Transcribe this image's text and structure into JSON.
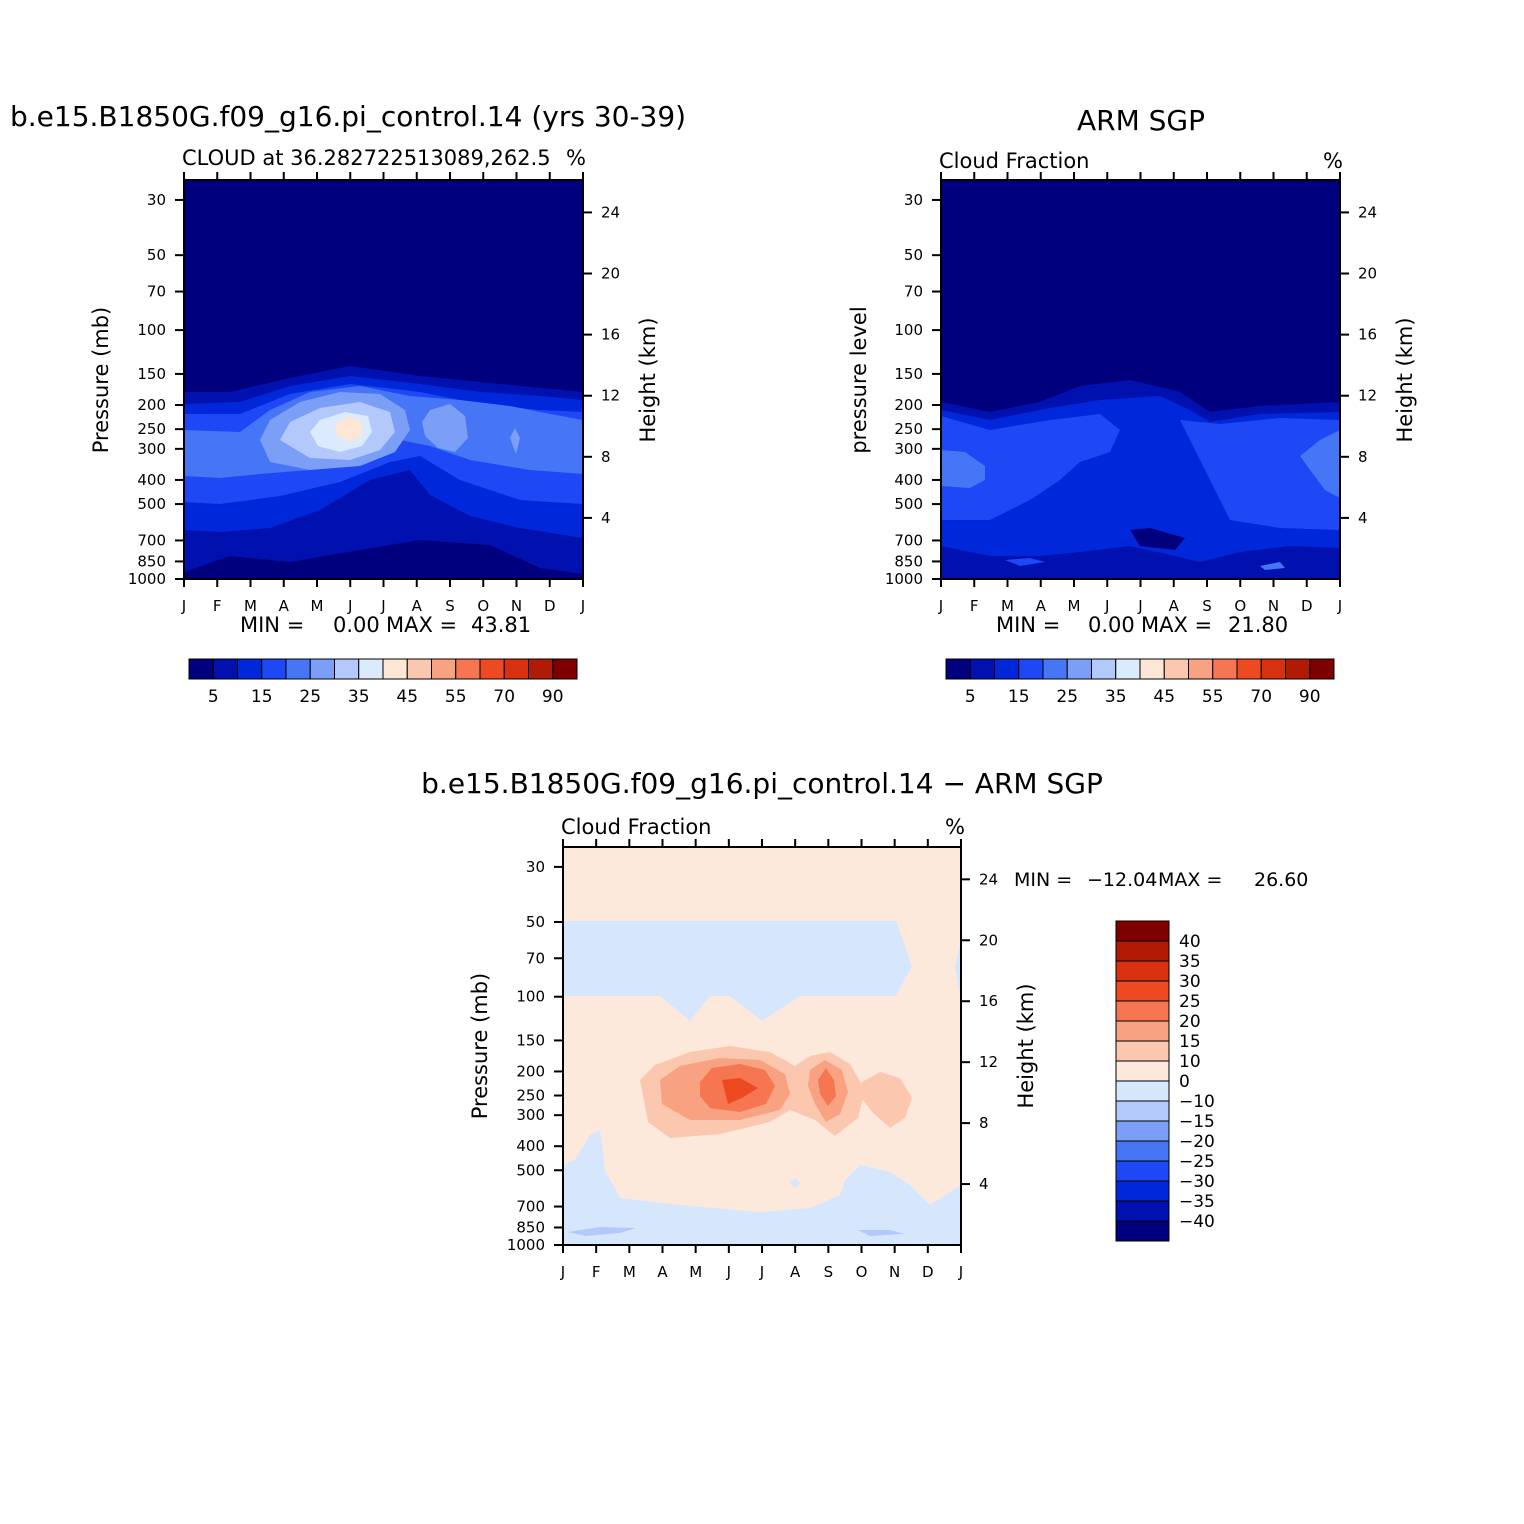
{
  "chart_data": [
    {
      "type": "heatmap",
      "id": "model",
      "title": "b.e15.B1850G.f09_g16.pi_control.14 (yrs 30-39)",
      "subtitle_left": "CLOUD at 36.282722513089,262.5",
      "subtitle_right": "%",
      "xlabel": "",
      "ylabel": "Pressure (mb)",
      "ylabel_right": "Height (km)",
      "x_ticks": [
        "J",
        "F",
        "M",
        "A",
        "M",
        "J",
        "J",
        "A",
        "S",
        "O",
        "N",
        "D",
        "J"
      ],
      "y_ticks": [
        "30",
        "50",
        "70",
        "100",
        "150",
        "200",
        "250",
        "300",
        "400",
        "500",
        "700",
        "850",
        "1000"
      ],
      "y_ticks_right": [
        "24",
        "20",
        "16",
        "12",
        "8",
        "4"
      ],
      "stats": {
        "min_label": "MIN =",
        "min": "0.00",
        "max_label": "MAX =",
        "max": "43.81"
      },
      "max_value": 43.81,
      "legend": [
        "5",
        "15",
        "25",
        "35",
        "45",
        "55",
        "70",
        "90"
      ]
    },
    {
      "type": "heatmap",
      "id": "obs",
      "title": "ARM SGP",
      "subtitle_left": "Cloud Fraction",
      "subtitle_right": "%",
      "ylabel": "pressure level",
      "ylabel_right": "Height (km)",
      "x_ticks": [
        "J",
        "F",
        "M",
        "A",
        "M",
        "J",
        "J",
        "A",
        "S",
        "O",
        "N",
        "D",
        "J"
      ],
      "y_ticks": [
        "30",
        "50",
        "70",
        "100",
        "150",
        "200",
        "250",
        "300",
        "400",
        "500",
        "700",
        "850",
        "1000"
      ],
      "y_ticks_right": [
        "24",
        "20",
        "16",
        "12",
        "8",
        "4"
      ],
      "stats": {
        "min_label": "MIN =",
        "min": "0.00",
        "max_label": "MAX =",
        "max": "21.80"
      },
      "max_value": 21.8,
      "legend": [
        "5",
        "15",
        "25",
        "35",
        "45",
        "55",
        "70",
        "90"
      ]
    },
    {
      "type": "heatmap",
      "id": "diff",
      "title": "b.e15.B1850G.f09_g16.pi_control.14 - ARM SGP",
      "subtitle_left": "Cloud Fraction",
      "subtitle_right": "%",
      "ylabel": "Pressure (mb)",
      "ylabel_right": "Height (km)",
      "x_ticks": [
        "J",
        "F",
        "M",
        "A",
        "M",
        "J",
        "J",
        "A",
        "S",
        "O",
        "N",
        "D",
        "J"
      ],
      "y_ticks": [
        "30",
        "50",
        "70",
        "100",
        "150",
        "200",
        "250",
        "300",
        "400",
        "500",
        "700",
        "850",
        "1000"
      ],
      "y_ticks_right": [
        "24",
        "20",
        "16",
        "12",
        "8",
        "4"
      ],
      "stats": {
        "min_label": "MIN =",
        "min": "-12.04",
        "max_label": "MAX =",
        "max": "26.60"
      },
      "min_value": -12.04,
      "max_value": 26.6,
      "legend": [
        "40",
        "35",
        "30",
        "25",
        "20",
        "15",
        "10",
        "0",
        "-10",
        "-15",
        "-20",
        "-25",
        "-30",
        "-35",
        "-40"
      ]
    }
  ],
  "palette": {
    "seq": [
      "#00007f",
      "#0011b0",
      "#0028da",
      "#1e48f5",
      "#4675f6",
      "#7b9ef7",
      "#b3c9fb",
      "#dceafd",
      "#fde6d6",
      "#fbc7ae",
      "#f8a282",
      "#f57651",
      "#ed4a22",
      "#d93010",
      "#b11b06",
      "#7f0000"
    ],
    "diff": [
      "#7f0000",
      "#b11b06",
      "#d93010",
      "#ed4a22",
      "#f57651",
      "#f8a282",
      "#fbc7ae",
      "#fde9dc",
      "#d6e7fd",
      "#b3c9fb",
      "#7b9ef7",
      "#4675f6",
      "#1e48f5",
      "#0028da",
      "#0011b0",
      "#00007f"
    ]
  }
}
